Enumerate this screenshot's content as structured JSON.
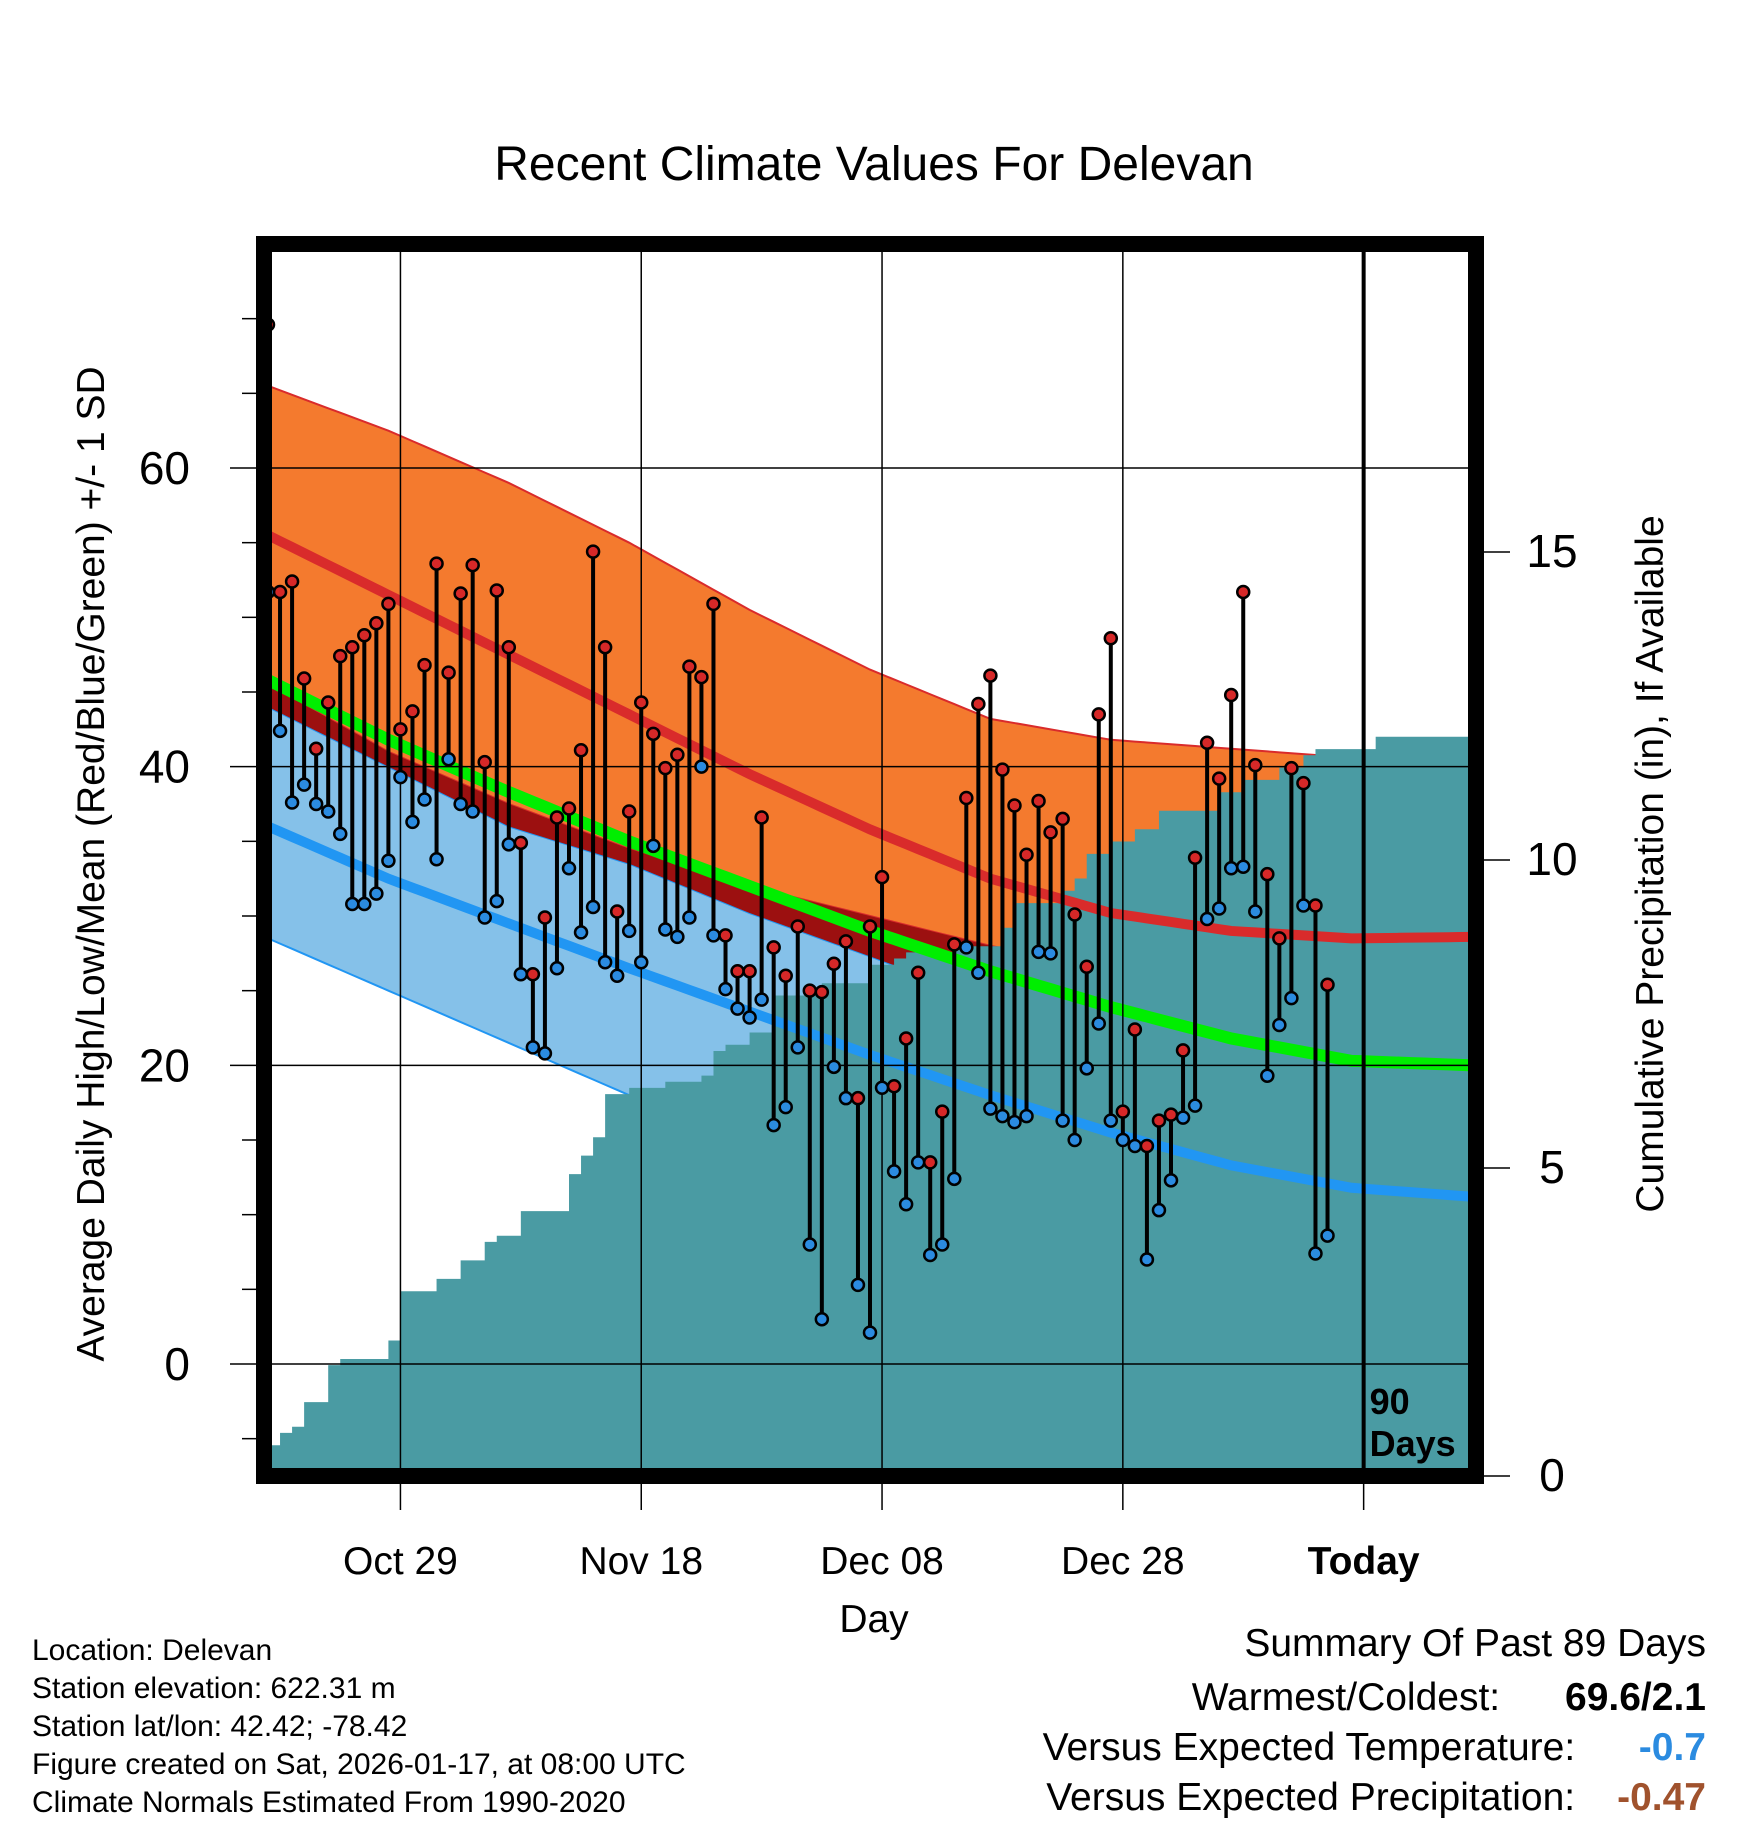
{
  "chart_data": {
    "type": "line",
    "title": "Recent Climate Values For Delevan",
    "xlabel": "Day",
    "ylabel": "Average Daily High/Low/Mean (Red/Blue/Green) +/- 1 SD",
    "y2label": "Cumulative Precipitation (in), If Available",
    "xlim": [
      0,
      100
    ],
    "ylim": [
      -7.5,
      75
    ],
    "y2lim": [
      0,
      20
    ],
    "x_ticks": [
      {
        "day": 11,
        "label": "Oct 29"
      },
      {
        "day": 31,
        "label": "Nov 18"
      },
      {
        "day": 51,
        "label": "Dec 08"
      },
      {
        "day": 71,
        "label": "Dec 28"
      },
      {
        "day": 91,
        "label": "Today"
      }
    ],
    "y_ticks": [
      0,
      20,
      40,
      60
    ],
    "y2_ticks": [
      0,
      5,
      10,
      15
    ],
    "today_marker": {
      "day": 91,
      "label_line1": "90",
      "label_line2": "Days"
    },
    "normal_day": [
      0,
      10,
      20,
      30,
      40,
      50,
      60,
      70,
      80,
      90,
      100
    ],
    "normal_high_mean": [
      55.5,
      51.5,
      47.5,
      43.5,
      39.5,
      35.8,
      32.5,
      30.2,
      29.0,
      28.5,
      28.6
    ],
    "normal_high_upper": [
      65.5,
      62.5,
      59.0,
      55.0,
      50.5,
      46.5,
      43.2,
      41.8,
      41.2,
      40.6,
      40.2
    ],
    "normal_high_lower": [
      45.5,
      41.0,
      37.5,
      34.5,
      32.0,
      30.0,
      28.0,
      26.5,
      25.5,
      24.6,
      24.2
    ],
    "normal_mean": [
      45.8,
      41.8,
      38.3,
      35.0,
      32.0,
      29.0,
      26.3,
      23.9,
      21.8,
      20.3,
      20.0
    ],
    "normal_low_mean": [
      36.0,
      32.5,
      29.5,
      26.5,
      23.6,
      20.7,
      18.0,
      15.5,
      13.3,
      11.8,
      11.2
    ],
    "normal_low_upper": [
      44.0,
      40.0,
      36.0,
      33.5,
      30.2,
      27.3,
      24.3,
      21.5,
      19.0,
      17.5,
      17.0
    ],
    "normal_low_lower": [
      28.5,
      25.0,
      21.5,
      18.0,
      14.8,
      11.6,
      8.5,
      5.8,
      3.5,
      1.6,
      0.8
    ],
    "precip_day": [
      0,
      1,
      2,
      3,
      5,
      6,
      10,
      11,
      14,
      16,
      18,
      19,
      21,
      25,
      26,
      27,
      28,
      30,
      33,
      36,
      37,
      38,
      40,
      42,
      46,
      50,
      52,
      53,
      57,
      61,
      62,
      66,
      67,
      68,
      70,
      72,
      74,
      79,
      81,
      84,
      86,
      87,
      88,
      92,
      100
    ],
    "precip_cum": [
      0.5,
      0.7,
      0.8,
      1.2,
      1.8,
      1.9,
      2.2,
      3.0,
      3.2,
      3.5,
      3.8,
      3.9,
      4.3,
      4.9,
      5.2,
      5.5,
      6.2,
      6.3,
      6.4,
      6.5,
      6.9,
      7.0,
      7.2,
      7.8,
      8.0,
      8.3,
      8.4,
      8.5,
      8.6,
      8.9,
      9.3,
      9.5,
      9.7,
      10.1,
      10.3,
      10.5,
      10.8,
      11.1,
      11.3,
      11.5,
      11.7,
      11.8,
      11.8,
      12.0,
      12.0
    ],
    "obs_high": [
      69.6,
      51.7,
      52.4,
      45.9,
      41.2,
      44.3,
      47.4,
      48.0,
      48.8,
      49.6,
      50.9,
      42.5,
      43.7,
      46.8,
      53.6,
      46.3,
      51.6,
      53.5,
      40.3,
      51.8,
      48.0,
      34.9,
      26.1,
      29.9,
      36.6,
      37.2,
      41.1,
      54.4,
      48.0,
      30.3,
      37.0,
      44.3,
      42.2,
      39.9,
      40.8,
      46.7,
      46.0,
      50.9,
      28.7,
      26.3,
      26.3,
      36.6,
      27.9,
      26.0,
      29.3,
      25.0,
      24.9,
      26.8,
      28.3,
      17.8,
      29.3,
      32.6,
      18.6,
      21.8,
      26.2,
      13.5,
      16.9,
      28.1,
      37.9,
      44.2,
      46.1,
      39.8,
      37.4,
      34.1,
      37.7,
      35.6,
      36.5,
      30.1,
      26.6,
      43.5,
      48.6,
      16.9,
      22.4,
      14.6,
      16.3,
      16.7,
      21.0,
      33.9,
      41.6,
      39.2,
      44.8,
      51.7,
      40.1,
      32.8,
      28.5,
      39.9,
      38.9,
      30.7,
      25.4
    ],
    "obs_low": [
      51.7,
      42.4,
      37.6,
      38.8,
      37.5,
      37.0,
      35.5,
      30.8,
      30.8,
      31.5,
      33.7,
      39.3,
      36.3,
      37.8,
      33.8,
      40.5,
      37.5,
      37.0,
      29.9,
      31.0,
      34.8,
      26.1,
      21.2,
      20.8,
      26.5,
      33.2,
      28.9,
      30.6,
      26.9,
      26.0,
      29.0,
      26.9,
      34.7,
      29.1,
      28.6,
      29.9,
      40.0,
      28.7,
      25.1,
      23.8,
      23.2,
      24.4,
      16.0,
      17.2,
      21.2,
      8.0,
      3.0,
      19.9,
      17.8,
      5.3,
      2.1,
      18.5,
      12.9,
      10.7,
      13.5,
      7.3,
      8.0,
      12.4,
      27.9,
      26.2,
      17.1,
      16.6,
      16.2,
      16.6,
      27.6,
      27.5,
      16.3,
      15.0,
      19.8,
      22.8,
      16.3,
      15.0,
      14.6,
      7.0,
      10.3,
      12.3,
      16.5,
      17.3,
      29.8,
      30.5,
      33.2,
      33.3,
      30.3,
      19.3,
      22.7,
      24.5,
      30.7,
      7.4,
      8.6
    ],
    "series_colors": {
      "high_band": "#f47a2e",
      "high_line": "#d92b2b",
      "mean_line": "#00ee00",
      "mean_band": "#9c1010",
      "low_band": "#85c1e9",
      "low_line": "#2196f3",
      "precip_fill": "#4a9ba3",
      "high_marker": "#d62828",
      "low_marker": "#2b8be0"
    }
  },
  "footer": {
    "location": "Location: Delevan",
    "elevation": "Station elevation: 622.31 m",
    "latlon": "Station lat/lon: 42.42; -78.42",
    "created": "Figure created on Sat, 2026-01-17, at 08:00 UTC",
    "normals": "Climate Normals Estimated From 1990-2020"
  },
  "summary": {
    "title": "Summary Of Past 89 Days",
    "warmest_label": "Warmest/Coldest:",
    "warmest_value": "69.6/2.1",
    "temp_label": "Versus Expected Temperature:",
    "temp_value": "-0.7",
    "temp_color": "#2b8be0",
    "precip_label": "Versus Expected Precipitation:",
    "precip_value": "-0.47",
    "precip_color": "#a0522d"
  }
}
